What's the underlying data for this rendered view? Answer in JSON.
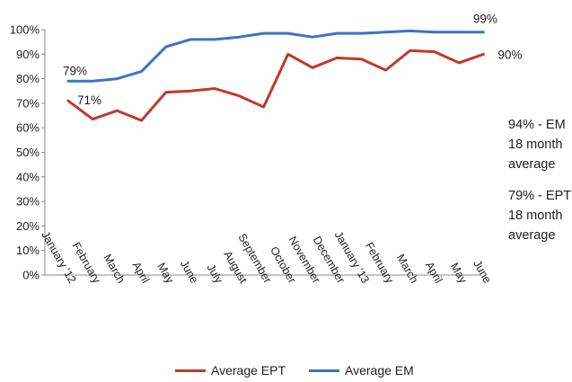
{
  "chart_data": {
    "type": "line",
    "categories": [
      "January '12",
      "February",
      "March",
      "April",
      "May",
      "June",
      "July",
      "August",
      "September",
      "October",
      "November",
      "December",
      "January '13",
      "February",
      "March",
      "April",
      "May",
      "June"
    ],
    "ylim": [
      0,
      100
    ],
    "yticks": [
      "0%",
      "10%",
      "20%",
      "30%",
      "40%",
      "50%",
      "60%",
      "70%",
      "80%",
      "90%",
      "100%"
    ],
    "series": [
      {
        "name": "Average EPT",
        "color": "#c0392b",
        "values": [
          71,
          63.5,
          67,
          63,
          74.5,
          75,
          76,
          73,
          68.5,
          90,
          84.5,
          88.5,
          88,
          83.5,
          91.5,
          91,
          86.5,
          90
        ]
      },
      {
        "name": "Average EM",
        "color": "#3f72c1",
        "values": [
          79,
          79,
          80,
          83,
          93,
          96,
          96,
          97,
          98.5,
          98.5,
          97,
          98.5,
          98.5,
          99,
          99.5,
          99,
          99,
          99
        ]
      }
    ],
    "data_labels": [
      {
        "text": "79%",
        "series": 1,
        "index": 0
      },
      {
        "text": "71%",
        "series": 0,
        "index": 0
      },
      {
        "text": "99%",
        "series": 1,
        "index": 17
      },
      {
        "text": "90%",
        "series": 0,
        "index": 17
      }
    ],
    "grid": false,
    "legend": "bottom"
  },
  "notes": [
    {
      "text": "94% - EM\n18 month\naverage"
    },
    {
      "text": "79% - EPT\n18 month\naverage"
    }
  ]
}
